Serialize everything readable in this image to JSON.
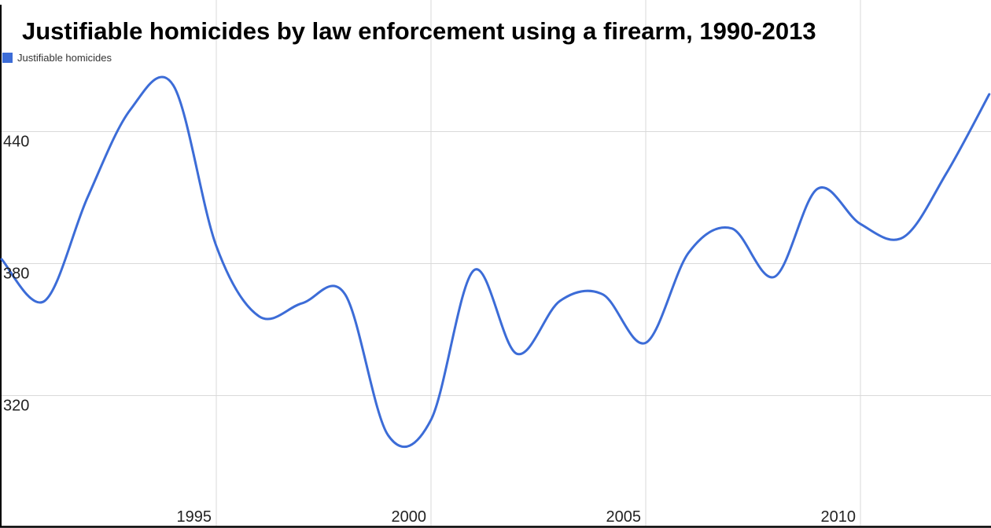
{
  "header": {
    "title": "Justifiable homicides by law enforcement using a firearm, 1990-2013"
  },
  "legend": {
    "position": "top-left",
    "items": [
      {
        "label": "Justifiable homicides",
        "swatch_icon": "legend-square-icon",
        "color": "#3c6cd7"
      }
    ]
  },
  "chart_data": {
    "type": "line",
    "title": "Justifiable homicides by law enforcement using a firearm, 1990-2013",
    "xlabel": "",
    "ylabel": "",
    "x_range": [
      1990,
      2013
    ],
    "ylim": [
      260,
      500
    ],
    "grid": true,
    "legend_position": "top-left",
    "line_style": "smooth",
    "x": [
      1990,
      1991,
      1992,
      1993,
      1994,
      1995,
      1996,
      1997,
      1998,
      1999,
      2000,
      2001,
      2002,
      2003,
      2004,
      2005,
      2006,
      2007,
      2008,
      2009,
      2010,
      2011,
      2012,
      2013
    ],
    "series": [
      {
        "name": "Justifiable homicides",
        "values": [
          382,
          363,
          410,
          450,
          461,
          388,
          356,
          362,
          366,
          302,
          309,
          377,
          339,
          363,
          366,
          344,
          385,
          396,
          374,
          414,
          398,
          392,
          421,
          457
        ]
      }
    ],
    "x_ticks": [
      1995,
      2000,
      2005,
      2010
    ],
    "y_ticks": [
      440,
      380,
      320
    ],
    "y_gridlines": [
      500,
      440,
      380,
      320
    ],
    "colors": {
      "line": "#3c6cd7",
      "gridline": "#d9d9d9",
      "axis": "#000000",
      "tick_text": "#222222"
    }
  }
}
